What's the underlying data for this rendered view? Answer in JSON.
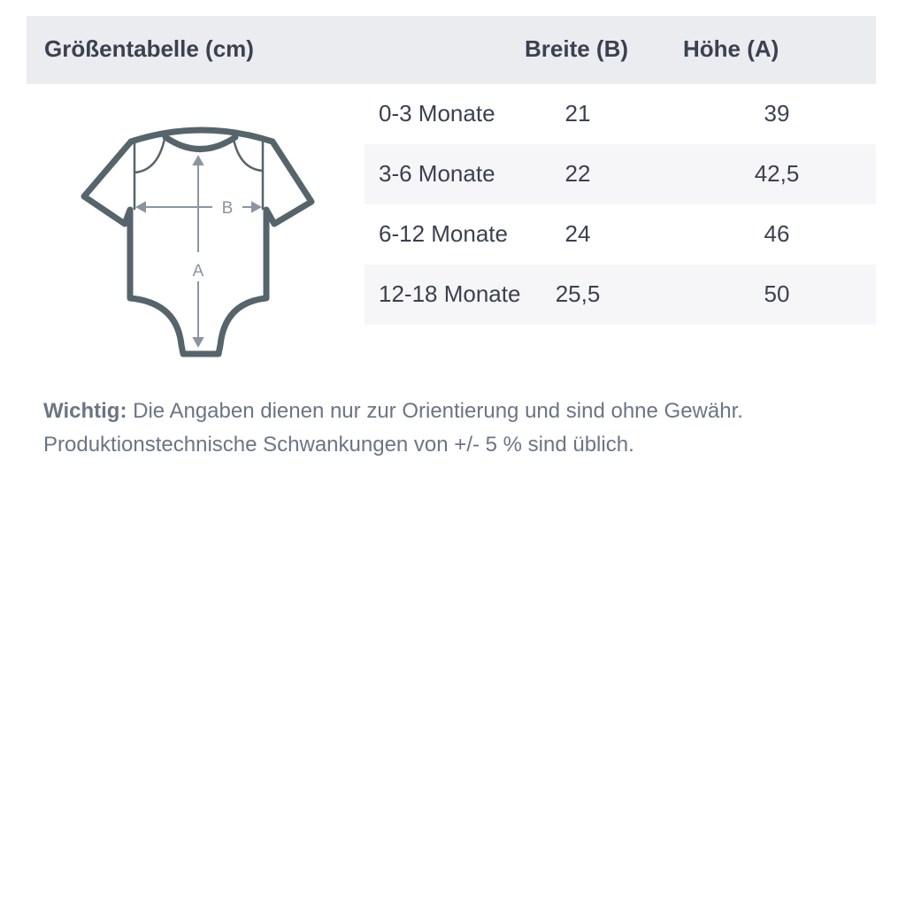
{
  "header": {
    "title": "Größentabelle (cm)",
    "col_width": "Breite (B)",
    "col_height": "Höhe (A)"
  },
  "rows": [
    {
      "size": "0-3 Monate",
      "width": "21",
      "height": "39"
    },
    {
      "size": "3-6 Monate",
      "width": "22",
      "height": "42,5"
    },
    {
      "size": "6-12 Monate",
      "width": "24",
      "height": "46"
    },
    {
      "size": "12-18 Monate",
      "width": "25,5",
      "height": "50"
    }
  ],
  "diagram": {
    "label_b": "B",
    "label_a": "A",
    "icon": "baby-bodysuit-icon"
  },
  "note": {
    "bold": "Wichtig:",
    "text": " Die Angaben dienen nur zur Orientierung und sind ohne Gewähr.",
    "line2": "Produktionstechnische Schwankungen von +/- 5 % sind üblich."
  },
  "colors": {
    "outline": "#56646b",
    "arrow": "#8a95a0",
    "header_bg": "#ebecf0",
    "text": "#3b4150",
    "note": "#6b7585"
  }
}
